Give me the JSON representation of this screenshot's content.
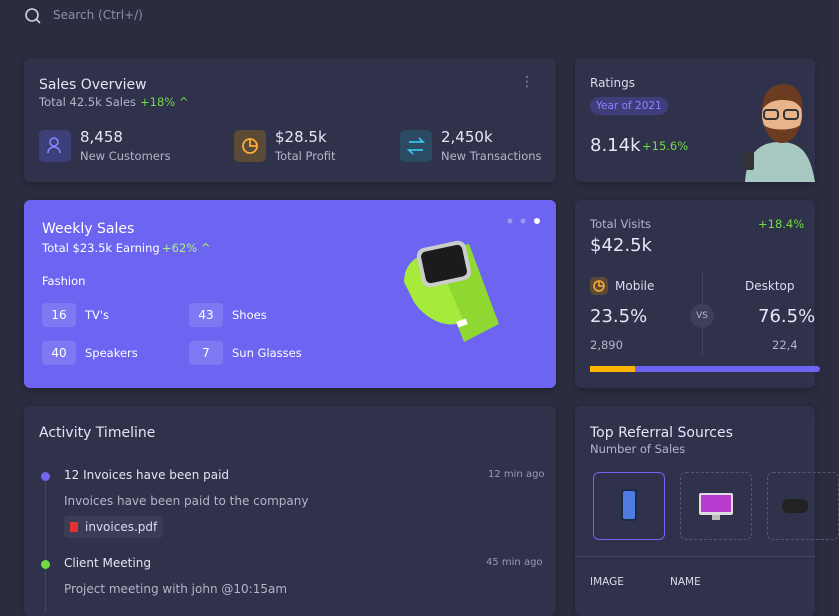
{
  "search": {
    "placeholder": "Search (Ctrl+/)"
  },
  "sales_overview": {
    "title": "Sales Overview",
    "subtitle": "Total 42.5k Sales",
    "change": "+18%",
    "stats": [
      {
        "value": "8,458",
        "label": "New Customers"
      },
      {
        "value": "$28.5k",
        "label": "Total Profit"
      },
      {
        "value": "2,450k",
        "label": "New Transactions"
      }
    ]
  },
  "ratings": {
    "title": "Ratings",
    "badge": "Year of 2021",
    "value": "8.14k",
    "change": "+15.6%"
  },
  "weekly_sales": {
    "title": "Weekly Sales",
    "subtitle": "Total $23.5k Earning",
    "change": "+62%",
    "section": "Fashion",
    "items": [
      {
        "count": "16",
        "label": "TV's"
      },
      {
        "count": "43",
        "label": "Shoes"
      },
      {
        "count": "40",
        "label": "Speakers"
      },
      {
        "count": "7",
        "label": "Sun Glasses"
      }
    ]
  },
  "total_visits": {
    "title": "Total Visits",
    "change": "+18.4%",
    "value": "$42.5k",
    "vs": "VS",
    "mobile": {
      "label": "Mobile",
      "percent": "23.5%",
      "count": "2,890"
    },
    "desktop": {
      "label": "Desktop",
      "percent": "76.5%",
      "count": "22,4"
    }
  },
  "activity_timeline": {
    "title": "Activity Timeline",
    "items": [
      {
        "title": "12 Invoices have been paid",
        "time": "12 min ago",
        "description": "Invoices have been paid to the company",
        "attachment": "invoices.pdf"
      },
      {
        "title": "Client Meeting",
        "time": "45 min ago",
        "description": "Project meeting with john @10:15am"
      }
    ]
  },
  "top_referral": {
    "title": "Top Referral Sources",
    "subtitle": "Number of Sales",
    "columns": [
      "IMAGE",
      "NAME"
    ]
  }
}
